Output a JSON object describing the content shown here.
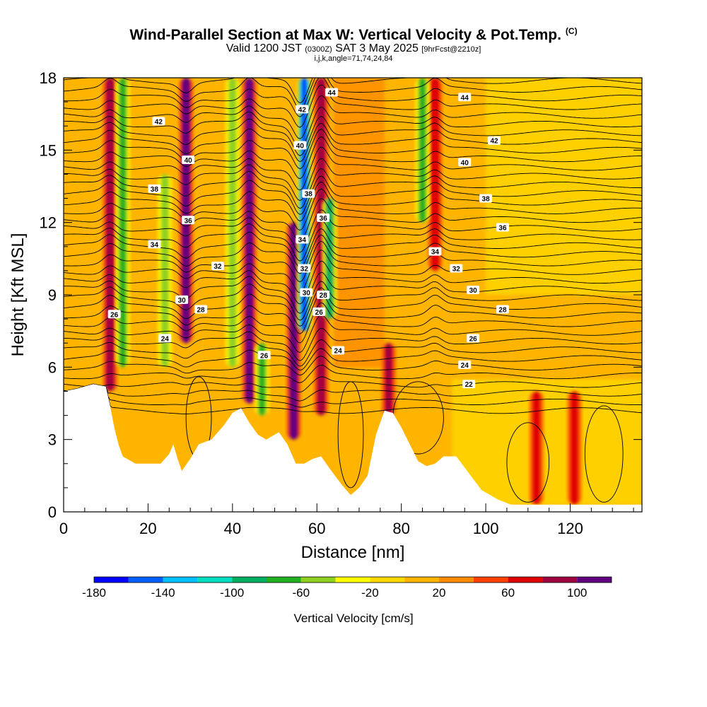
{
  "header": {
    "title": "Wind-Parallel Section at Max W: Vertical Velocity & Pot.Temp.",
    "copyright": "(C)",
    "valid_prefix": "Valid 1200 JST",
    "valid_utc": "(0300Z)",
    "valid_date": "SAT 3 May 2025",
    "forecast": "[9hrFcst@2210z]",
    "indices": "i,j,k,angle=71,74,24,84"
  },
  "colors": {
    "fill_bins": [
      "#0000ff",
      "#0060ff",
      "#00c0ff",
      "#00e0c0",
      "#00b060",
      "#20b020",
      "#90d020",
      "#ffff00",
      "#ffd800",
      "#ffb400",
      "#ff8c00",
      "#ff4000",
      "#e00000",
      "#a00040",
      "#600080"
    ]
  },
  "chart_data": {
    "type": "heatmap",
    "description_of_fields": "filled contours = vertical velocity (cm/s); black contour lines = potential temperature labels",
    "xlabel": "Distance [nm]",
    "ylabel": "Height [Kft MSL]",
    "xlim": [
      0,
      137
    ],
    "ylim": [
      0,
      18
    ],
    "x_ticks": [
      0,
      20,
      40,
      60,
      80,
      100,
      120
    ],
    "y_ticks": [
      0,
      3,
      6,
      9,
      12,
      15,
      18
    ],
    "colorbar": {
      "label": "Vertical Velocity [cm/s]",
      "tick_labels": [
        -180,
        -140,
        -100,
        -60,
        -20,
        20,
        60,
        100
      ],
      "bounds": [
        -180,
        120
      ]
    },
    "terrain_kft": [
      [
        0,
        5.0
      ],
      [
        3,
        5.1
      ],
      [
        7,
        5.3
      ],
      [
        10,
        5.2
      ],
      [
        11,
        4.4
      ],
      [
        12,
        3.5
      ],
      [
        13,
        2.8
      ],
      [
        14,
        2.3
      ],
      [
        17,
        2.0
      ],
      [
        20,
        2.0
      ],
      [
        23,
        2.0
      ],
      [
        25,
        2.4
      ],
      [
        26,
        2.8
      ],
      [
        27,
        2.2
      ],
      [
        28,
        1.7
      ],
      [
        30,
        2.2
      ],
      [
        32,
        2.8
      ],
      [
        35,
        3.0
      ],
      [
        38,
        3.6
      ],
      [
        40,
        4.1
      ],
      [
        42,
        4.3
      ],
      [
        44,
        3.7
      ],
      [
        46,
        3.2
      ],
      [
        48,
        3.0
      ],
      [
        51,
        3.3
      ],
      [
        53,
        2.8
      ],
      [
        55,
        2.0
      ],
      [
        57,
        2.0
      ],
      [
        59,
        2.2
      ],
      [
        61,
        2.3
      ],
      [
        63,
        1.8
      ],
      [
        66,
        1.1
      ],
      [
        68,
        0.7
      ],
      [
        70,
        1.0
      ],
      [
        72,
        1.5
      ],
      [
        74,
        3.2
      ],
      [
        76,
        4.2
      ],
      [
        78,
        4.1
      ],
      [
        80,
        3.5
      ],
      [
        82,
        2.8
      ],
      [
        84,
        2.1
      ],
      [
        86,
        1.9
      ],
      [
        88,
        2.0
      ],
      [
        90,
        2.3
      ],
      [
        93,
        2.3
      ],
      [
        96,
        1.6
      ],
      [
        99,
        0.9
      ],
      [
        103,
        0.5
      ],
      [
        106,
        0.3
      ],
      [
        110,
        0.3
      ],
      [
        115,
        0.3
      ],
      [
        120,
        0.3
      ],
      [
        125,
        0.3
      ],
      [
        130,
        0.3
      ],
      [
        135,
        0.3
      ],
      [
        137,
        0.3
      ]
    ],
    "updraft_columns": [
      {
        "x": 11,
        "top": 18,
        "bottom": 5.0,
        "w_cm_s": 90
      },
      {
        "x": 29,
        "top": 18,
        "bottom": 7.0,
        "w_cm_s": 110
      },
      {
        "x": 44,
        "top": 18,
        "bottom": 4.5,
        "w_cm_s": 120
      },
      {
        "x": 54.5,
        "top": 12,
        "bottom": 3.0,
        "w_cm_s": 110
      },
      {
        "x": 61,
        "top": 18,
        "bottom": 4.0,
        "w_cm_s": 90
      },
      {
        "x": 77,
        "top": 7,
        "bottom": 4.0,
        "w_cm_s": 80
      },
      {
        "x": 88,
        "top": 18,
        "bottom": 10.0,
        "w_cm_s": 70
      },
      {
        "x": 112,
        "top": 5,
        "bottom": 0.3,
        "w_cm_s": 60
      },
      {
        "x": 121,
        "top": 5,
        "bottom": 0.3,
        "w_cm_s": 60
      }
    ],
    "downdraft_columns": [
      {
        "x": 14,
        "top": 18,
        "bottom": 6.0,
        "w_cm_s": -70
      },
      {
        "x": 24,
        "top": 14,
        "bottom": 6.0,
        "w_cm_s": -50
      },
      {
        "x": 40,
        "top": 18,
        "bottom": 6.0,
        "w_cm_s": -60
      },
      {
        "x": 47,
        "top": 7,
        "bottom": 4.0,
        "w_cm_s": -80
      },
      {
        "x": 57,
        "top": 18,
        "bottom": 7.5,
        "w_cm_s": -170
      },
      {
        "x": 63,
        "top": 13,
        "bottom": 8.0,
        "w_cm_s": -90
      },
      {
        "x": 85,
        "top": 18,
        "bottom": 12.0,
        "w_cm_s": -70
      }
    ],
    "theta_labels": [
      {
        "x": 63.5,
        "y": 17.4,
        "text": "44"
      },
      {
        "x": 95,
        "y": 17.2,
        "text": "44"
      },
      {
        "x": 22.5,
        "y": 16.2,
        "text": "42"
      },
      {
        "x": 56.5,
        "y": 16.7,
        "text": "42"
      },
      {
        "x": 102,
        "y": 15.4,
        "text": "42"
      },
      {
        "x": 56,
        "y": 15.2,
        "text": "40"
      },
      {
        "x": 29.5,
        "y": 14.6,
        "text": "40"
      },
      {
        "x": 95,
        "y": 14.5,
        "text": "40"
      },
      {
        "x": 21.5,
        "y": 13.4,
        "text": "38"
      },
      {
        "x": 58,
        "y": 13.2,
        "text": "38"
      },
      {
        "x": 100,
        "y": 13.0,
        "text": "38"
      },
      {
        "x": 29.5,
        "y": 12.1,
        "text": "36"
      },
      {
        "x": 61.5,
        "y": 12.2,
        "text": "36"
      },
      {
        "x": 104,
        "y": 11.8,
        "text": "36"
      },
      {
        "x": 21.5,
        "y": 11.1,
        "text": "34"
      },
      {
        "x": 56.5,
        "y": 11.3,
        "text": "34"
      },
      {
        "x": 88,
        "y": 10.8,
        "text": "34"
      },
      {
        "x": 36.5,
        "y": 10.2,
        "text": "32"
      },
      {
        "x": 57,
        "y": 10.1,
        "text": "32"
      },
      {
        "x": 93,
        "y": 10.1,
        "text": "32"
      },
      {
        "x": 28,
        "y": 8.8,
        "text": "30"
      },
      {
        "x": 57.5,
        "y": 9.1,
        "text": "30"
      },
      {
        "x": 97,
        "y": 9.2,
        "text": "30"
      },
      {
        "x": 32.5,
        "y": 8.4,
        "text": "28"
      },
      {
        "x": 61.5,
        "y": 9.0,
        "text": "28"
      },
      {
        "x": 104,
        "y": 8.4,
        "text": "28"
      },
      {
        "x": 12,
        "y": 8.2,
        "text": "26"
      },
      {
        "x": 47.5,
        "y": 6.5,
        "text": "26"
      },
      {
        "x": 60.5,
        "y": 8.3,
        "text": "26"
      },
      {
        "x": 97,
        "y": 7.2,
        "text": "26"
      },
      {
        "x": 24,
        "y": 7.2,
        "text": "24"
      },
      {
        "x": 65,
        "y": 6.7,
        "text": "24"
      },
      {
        "x": 95,
        "y": 6.1,
        "text": "24"
      },
      {
        "x": 96,
        "y": 5.3,
        "text": "22"
      }
    ]
  }
}
